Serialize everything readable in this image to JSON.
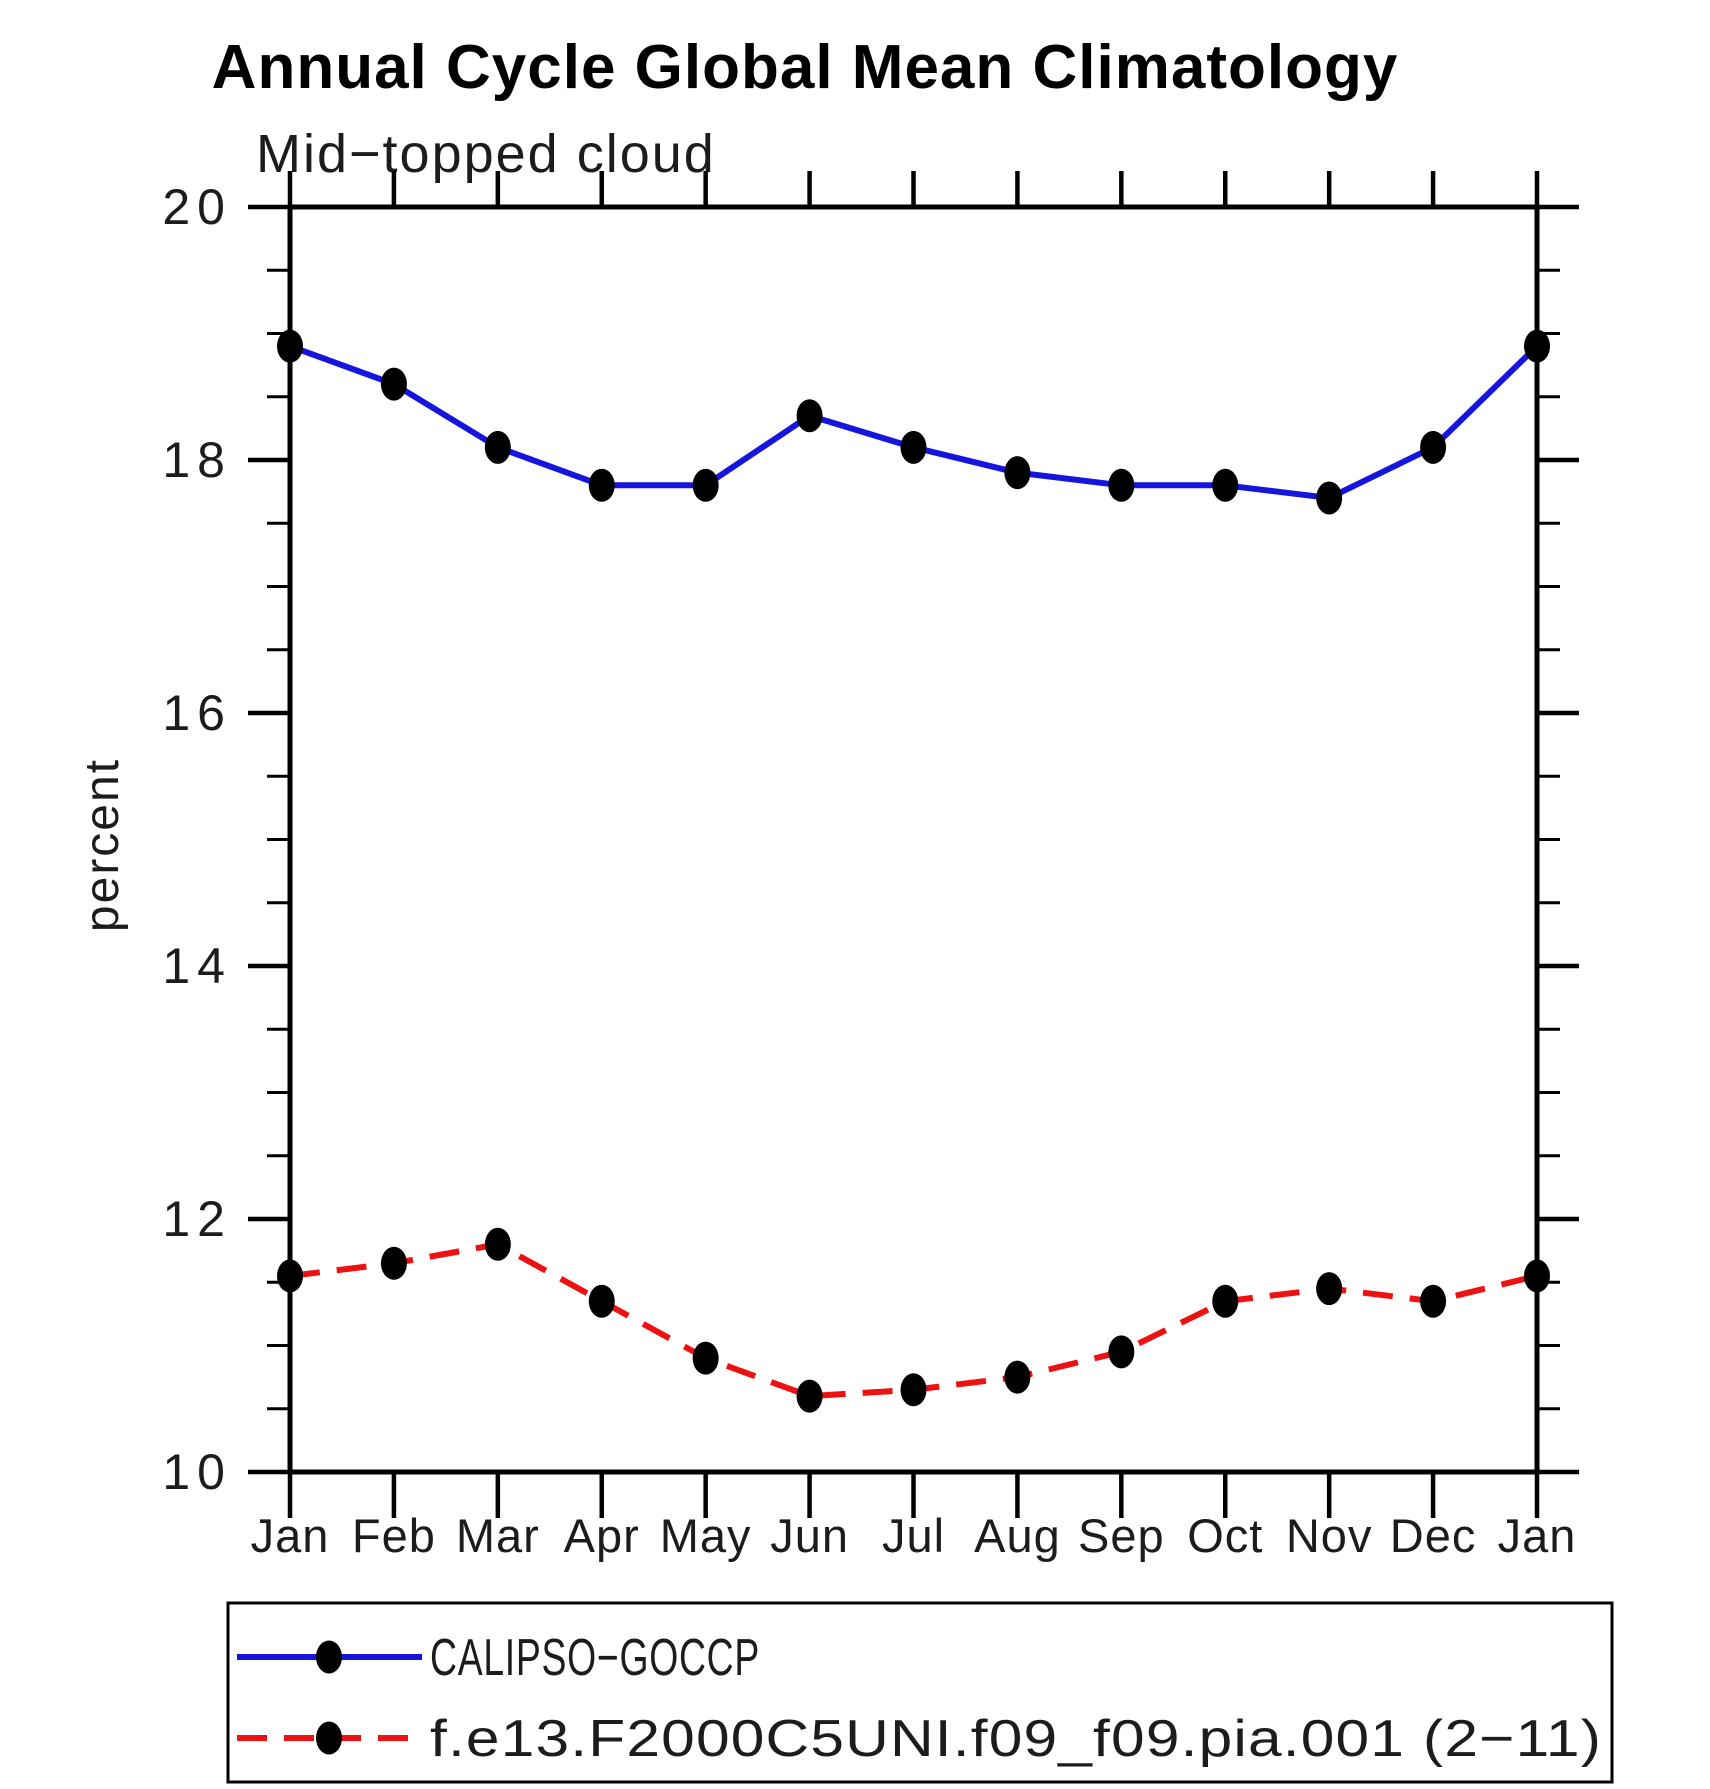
{
  "title": "Annual Cycle Global Mean Climatology",
  "subtitle": "Mid−topped cloud",
  "axes": {
    "ylabel": "percent",
    "y_tick_labels": [
      "20",
      "18",
      "16",
      "14",
      "12",
      "10"
    ],
    "x_tick_labels": [
      "Jan",
      "Feb",
      "Mar",
      "Apr",
      "May",
      "Jun",
      "Jul",
      "Aug",
      "Sep",
      "Oct",
      "Nov",
      "Dec",
      "Jan"
    ]
  },
  "legend": {
    "entries": [
      {
        "label": "CALIPSO−GOCCP",
        "color": "#1515dd",
        "style": "solid",
        "marker": "dot"
      },
      {
        "label": "f.e13.F2000C5UNI.f09_f09.pia.001 (2−11)",
        "color": "#ee1111",
        "style": "dashed",
        "marker": "dot"
      }
    ]
  },
  "colors": {
    "axis": "#000000",
    "marker": "#000000",
    "blue_series": "#1515dd",
    "red_series": "#ee1111",
    "background": "#ffffff"
  },
  "chart_data": {
    "type": "line",
    "title": "Annual Cycle Global Mean Climatology",
    "subtitle": "Mid−topped cloud",
    "xlabel": "",
    "ylabel": "percent",
    "x_categories": [
      "Jan",
      "Feb",
      "Mar",
      "Apr",
      "May",
      "Jun",
      "Jul",
      "Aug",
      "Sep",
      "Oct",
      "Nov",
      "Dec",
      "Jan"
    ],
    "ylim": [
      10,
      20
    ],
    "ytick_major_step": 2,
    "ytick_minor_step": 0.5,
    "grid": false,
    "legend_position": "bottom",
    "series": [
      {
        "name": "CALIPSO−GOCCP",
        "color": "#1515dd",
        "line_style": "solid",
        "marker": "filled-circle",
        "marker_color": "#000000",
        "values": [
          18.9,
          18.6,
          18.1,
          17.8,
          17.8,
          18.35,
          18.1,
          17.9,
          17.8,
          17.8,
          17.7,
          18.1,
          18.9
        ]
      },
      {
        "name": "f.e13.F2000C5UNI.f09_f09.pia.001 (2−11)",
        "color": "#ee1111",
        "line_style": "dashed",
        "marker": "filled-circle",
        "marker_color": "#000000",
        "values": [
          11.55,
          11.65,
          11.8,
          11.35,
          10.9,
          10.6,
          10.65,
          10.75,
          10.95,
          11.35,
          11.45,
          11.35,
          11.55
        ]
      }
    ]
  }
}
